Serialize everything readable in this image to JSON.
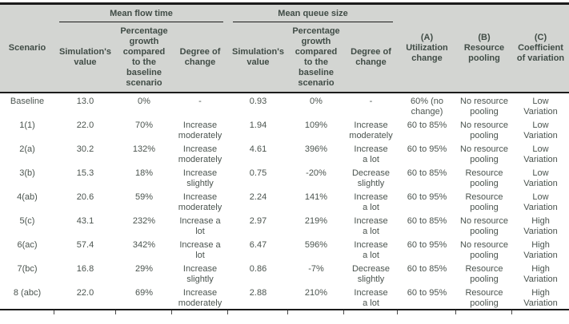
{
  "colors": {
    "header_bg": "#d3d5d2",
    "rule": "#1b1b1b",
    "header_text": "#404c46",
    "body_text": "#4b544f"
  },
  "header": {
    "scenario": "Scenario",
    "groups": [
      {
        "label": "Mean flow time"
      },
      {
        "label": "Mean queue size"
      }
    ],
    "subheaders": [
      "Simulation's\nvalue",
      "Percentage\ngrowth\ncompared\nto the\nbaseline\nscenario",
      "Degree of\nchange",
      "Simulation's\nvalue",
      "Percentage\ngrowth\ncompared\nto the\nbaseline\nscenario",
      "Degree of\nchange"
    ],
    "factors": [
      "(A)\nUtilization\nchange",
      "(B)\nResource\npooling",
      "(C)\nCoefficient\nof variation"
    ]
  },
  "rows": [
    {
      "scenario": "Baseline",
      "flow_value": "13.0",
      "flow_growth": "0%",
      "flow_degree": "-",
      "queue_value": "0.93",
      "queue_growth": "0%",
      "queue_degree": "-",
      "utilization": "60% (no\nchange)",
      "pooling": "No resource\npooling",
      "variation": "Low\nVariation"
    },
    {
      "scenario": "1(1)",
      "flow_value": "22.0",
      "flow_growth": "70%",
      "flow_degree": "Increase\nmoderately",
      "queue_value": "1.94",
      "queue_growth": "109%",
      "queue_degree": "Increase\nmoderately",
      "utilization": "60 to 85%",
      "pooling": "No resource\npooling",
      "variation": "Low\nVariation"
    },
    {
      "scenario": "2(a)",
      "flow_value": "30.2",
      "flow_growth": "132%",
      "flow_degree": "Increase\nmoderately",
      "queue_value": "4.61",
      "queue_growth": "396%",
      "queue_degree": "Increase\na lot",
      "utilization": "60 to 95%",
      "pooling": "No resource\npooling",
      "variation": "Low\nVariation"
    },
    {
      "scenario": "3(b)",
      "flow_value": "15.3",
      "flow_growth": "18%",
      "flow_degree": "Increase\nslightly",
      "queue_value": "0.75",
      "queue_growth": "-20%",
      "queue_degree": "Decrease\nslightly",
      "utilization": "60 to 85%",
      "pooling": "Resource\npooling",
      "variation": "Low\nVariation"
    },
    {
      "scenario": "4(ab)",
      "flow_value": "20.6",
      "flow_growth": "59%",
      "flow_degree": "Increase\nmoderately",
      "queue_value": "2.24",
      "queue_growth": "141%",
      "queue_degree": "Increase\na lot",
      "utilization": "60 to 95%",
      "pooling": "Resource\npooling",
      "variation": "Low\nVariation"
    },
    {
      "scenario": "5(c)",
      "flow_value": "43.1",
      "flow_growth": "232%",
      "flow_degree": "Increase a\nlot",
      "queue_value": "2.97",
      "queue_growth": "219%",
      "queue_degree": "Increase\na lot",
      "utilization": "60 to 85%",
      "pooling": "No resource\npooling",
      "variation": "High\nVariation"
    },
    {
      "scenario": "6(ac)",
      "flow_value": "57.4",
      "flow_growth": "342%",
      "flow_degree": "Increase a\nlot",
      "queue_value": "6.47",
      "queue_growth": "596%",
      "queue_degree": "Increase\na lot",
      "utilization": "60 to 95%",
      "pooling": "No resource\npooling",
      "variation": "High\nVariation"
    },
    {
      "scenario": "7(bc)",
      "flow_value": "16.8",
      "flow_growth": "29%",
      "flow_degree": "Increase\nslightly",
      "queue_value": "0.86",
      "queue_growth": "-7%",
      "queue_degree": "Decrease\nslightly",
      "utilization": "60 to 85%",
      "pooling": "Resource\npooling",
      "variation": "High\nVariation"
    },
    {
      "scenario": "8 (abc)",
      "flow_value": "22.0",
      "flow_growth": "69%",
      "flow_degree": "Increase\nmoderately",
      "queue_value": "2.88",
      "queue_growth": "210%",
      "queue_degree": "Increase\na lot",
      "utilization": "60 to 95%",
      "pooling": "Resource\npooling",
      "variation": "High\nVariation"
    }
  ]
}
